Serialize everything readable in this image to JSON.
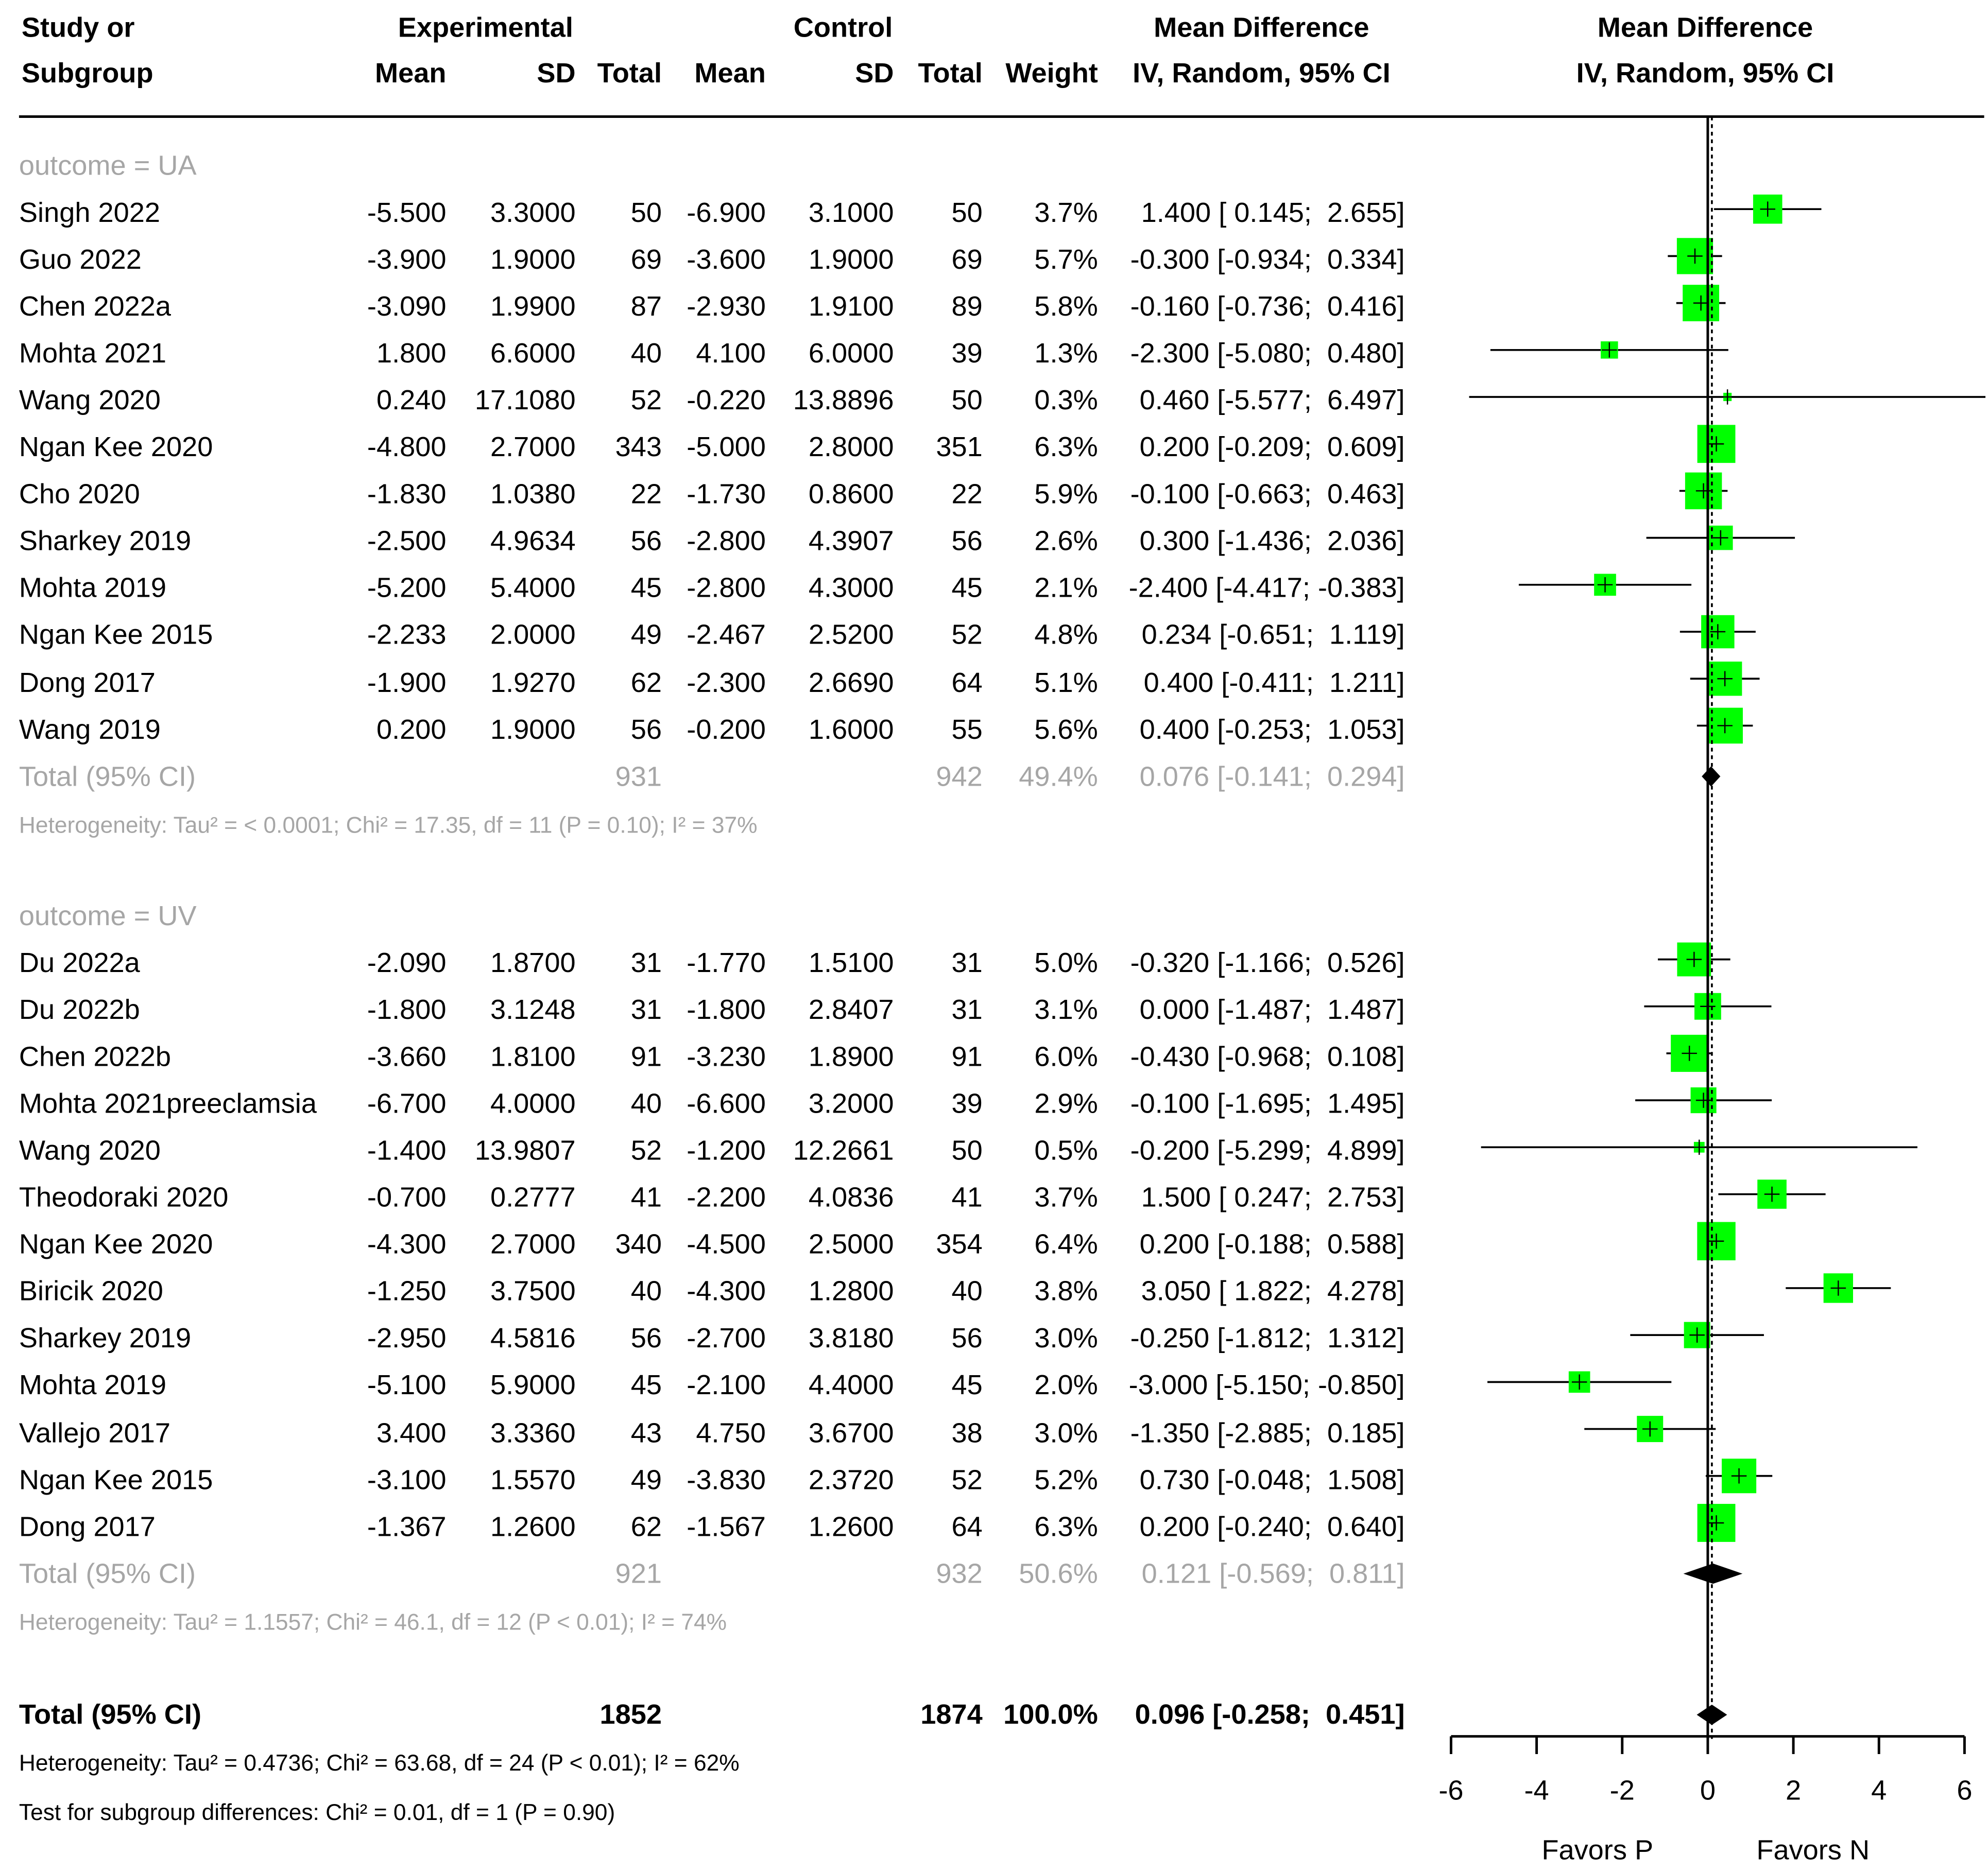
{
  "header": {
    "study_l1": "Study or",
    "study_l2": "Subgroup",
    "experimental": "Experimental",
    "control": "Control",
    "mean": "Mean",
    "sd": "SD",
    "total": "Total",
    "weight": "Weight",
    "md_title": "Mean Difference",
    "md_method": "IV, Random, 95% CI",
    "plot_title": "Mean Difference",
    "plot_method": "IV, Random, 95% CI"
  },
  "colors": {
    "box": "#00ff00",
    "subtotal_text": "#a6a6a6",
    "line": "#000000"
  },
  "chart_data": {
    "type": "forest",
    "xlim": [
      -6,
      6
    ],
    "xticks": [
      "-6",
      "-4",
      "-2",
      "0",
      "2",
      "4",
      "6"
    ],
    "favors_left": "Favors P",
    "favors_right": "Favors N",
    "groups": [
      {
        "label": "outcome = UA",
        "studies": [
          {
            "name": "Singh 2022",
            "em": "-5.500",
            "esd": "3.3000",
            "en": "50",
            "cm": "-6.900",
            "csd": "3.1000",
            "cn": "50",
            "w": "3.7%",
            "ci": "1.400 [ 0.145;  2.655]",
            "md": 1.4,
            "lo": 0.145,
            "hi": 2.655,
            "wt": 3.7
          },
          {
            "name": "Guo 2022",
            "em": "-3.900",
            "esd": "1.9000",
            "en": "69",
            "cm": "-3.600",
            "csd": "1.9000",
            "cn": "69",
            "w": "5.7%",
            "ci": "-0.300 [-0.934;  0.334]",
            "md": -0.3,
            "lo": -0.934,
            "hi": 0.334,
            "wt": 5.7
          },
          {
            "name": "Chen 2022a",
            "em": "-3.090",
            "esd": "1.9900",
            "en": "87",
            "cm": "-2.930",
            "csd": "1.9100",
            "cn": "89",
            "w": "5.8%",
            "ci": "-0.160 [-0.736;  0.416]",
            "md": -0.16,
            "lo": -0.736,
            "hi": 0.416,
            "wt": 5.8
          },
          {
            "name": "Mohta 2021",
            "em": "1.800",
            "esd": "6.6000",
            "en": "40",
            "cm": "4.100",
            "csd": "6.0000",
            "cn": "39",
            "w": "1.3%",
            "ci": "-2.300 [-5.080;  0.480]",
            "md": -2.3,
            "lo": -5.08,
            "hi": 0.48,
            "wt": 1.3
          },
          {
            "name": "Wang 2020",
            "em": "0.240",
            "esd": "17.1080",
            "en": "52",
            "cm": "-0.220",
            "csd": "13.8896",
            "cn": "50",
            "w": "0.3%",
            "ci": "0.460 [-5.577;  6.497]",
            "md": 0.46,
            "lo": -5.577,
            "hi": 6.497,
            "wt": 0.3
          },
          {
            "name": "Ngan Kee 2020",
            "em": "-4.800",
            "esd": "2.7000",
            "en": "343",
            "cm": "-5.000",
            "csd": "2.8000",
            "cn": "351",
            "w": "6.3%",
            "ci": "0.200 [-0.209;  0.609]",
            "md": 0.2,
            "lo": -0.209,
            "hi": 0.609,
            "wt": 6.3
          },
          {
            "name": "Cho 2020",
            "em": "-1.830",
            "esd": "1.0380",
            "en": "22",
            "cm": "-1.730",
            "csd": "0.8600",
            "cn": "22",
            "w": "5.9%",
            "ci": "-0.100 [-0.663;  0.463]",
            "md": -0.1,
            "lo": -0.663,
            "hi": 0.463,
            "wt": 5.9
          },
          {
            "name": "Sharkey 2019",
            "em": "-2.500",
            "esd": "4.9634",
            "en": "56",
            "cm": "-2.800",
            "csd": "4.3907",
            "cn": "56",
            "w": "2.6%",
            "ci": "0.300 [-1.436;  2.036]",
            "md": 0.3,
            "lo": -1.436,
            "hi": 2.036,
            "wt": 2.6
          },
          {
            "name": "Mohta 2019",
            "em": "-5.200",
            "esd": "5.4000",
            "en": "45",
            "cm": "-2.800",
            "csd": "4.3000",
            "cn": "45",
            "w": "2.1%",
            "ci": "-2.400 [-4.417; -0.383]",
            "md": -2.4,
            "lo": -4.417,
            "hi": -0.383,
            "wt": 2.1
          },
          {
            "name": "Ngan Kee 2015",
            "em": "-2.233",
            "esd": "2.0000",
            "en": "49",
            "cm": "-2.467",
            "csd": "2.5200",
            "cn": "52",
            "w": "4.8%",
            "ci": "0.234 [-0.651;  1.119]",
            "md": 0.234,
            "lo": -0.651,
            "hi": 1.119,
            "wt": 4.8
          },
          {
            "name": "Dong 2017",
            "em": "-1.900",
            "esd": "1.9270",
            "en": "62",
            "cm": "-2.300",
            "csd": "2.6690",
            "cn": "64",
            "w": "5.1%",
            "ci": "0.400 [-0.411;  1.211]",
            "md": 0.4,
            "lo": -0.411,
            "hi": 1.211,
            "wt": 5.1
          },
          {
            "name": "Wang 2019",
            "em": "0.200",
            "esd": "1.9000",
            "en": "56",
            "cm": "-0.200",
            "csd": "1.6000",
            "cn": "55",
            "w": "5.6%",
            "ci": "0.400 [-0.253;  1.053]",
            "md": 0.4,
            "lo": -0.253,
            "hi": 1.053,
            "wt": 5.6
          }
        ],
        "total": {
          "label": "Total (95% CI)",
          "en": "931",
          "cn": "942",
          "w": "49.4%",
          "ci": "0.076 [-0.141;  0.294]",
          "md": 0.076,
          "lo": -0.141,
          "hi": 0.294
        },
        "heterogeneity": "Heterogeneity: Tau² = < 0.0001; Chi² = 17.35, df = 11 (P = 0.10); I² = 37%"
      },
      {
        "label": "outcome = UV",
        "studies": [
          {
            "name": "Du 2022a",
            "em": "-2.090",
            "esd": "1.8700",
            "en": "31",
            "cm": "-1.770",
            "csd": "1.5100",
            "cn": "31",
            "w": "5.0%",
            "ci": "-0.320 [-1.166;  0.526]",
            "md": -0.32,
            "lo": -1.166,
            "hi": 0.526,
            "wt": 5.0
          },
          {
            "name": "Du 2022b",
            "em": "-1.800",
            "esd": "3.1248",
            "en": "31",
            "cm": "-1.800",
            "csd": "2.8407",
            "cn": "31",
            "w": "3.1%",
            "ci": "0.000 [-1.487;  1.487]",
            "md": 0.0,
            "lo": -1.487,
            "hi": 1.487,
            "wt": 3.1
          },
          {
            "name": "Chen 2022b",
            "em": "-3.660",
            "esd": "1.8100",
            "en": "91",
            "cm": "-3.230",
            "csd": "1.8900",
            "cn": "91",
            "w": "6.0%",
            "ci": "-0.430 [-0.968;  0.108]",
            "md": -0.43,
            "lo": -0.968,
            "hi": 0.108,
            "wt": 6.0
          },
          {
            "name": "Mohta 2021preeclamsia",
            "em": "-6.700",
            "esd": "4.0000",
            "en": "40",
            "cm": "-6.600",
            "csd": "3.2000",
            "cn": "39",
            "w": "2.9%",
            "ci": "-0.100 [-1.695;  1.495]",
            "md": -0.1,
            "lo": -1.695,
            "hi": 1.495,
            "wt": 2.9
          },
          {
            "name": "Wang 2020",
            "em": "-1.400",
            "esd": "13.9807",
            "en": "52",
            "cm": "-1.200",
            "csd": "12.2661",
            "cn": "50",
            "w": "0.5%",
            "ci": "-0.200 [-5.299;  4.899]",
            "md": -0.2,
            "lo": -5.299,
            "hi": 4.899,
            "wt": 0.5
          },
          {
            "name": "Theodoraki 2020",
            "em": "-0.700",
            "esd": "0.2777",
            "en": "41",
            "cm": "-2.200",
            "csd": "4.0836",
            "cn": "41",
            "w": "3.7%",
            "ci": "1.500 [ 0.247;  2.753]",
            "md": 1.5,
            "lo": 0.247,
            "hi": 2.753,
            "wt": 3.7
          },
          {
            "name": "Ngan Kee 2020",
            "em": "-4.300",
            "esd": "2.7000",
            "en": "340",
            "cm": "-4.500",
            "csd": "2.5000",
            "cn": "354",
            "w": "6.4%",
            "ci": "0.200 [-0.188;  0.588]",
            "md": 0.2,
            "lo": -0.188,
            "hi": 0.588,
            "wt": 6.4
          },
          {
            "name": "Biricik 2020",
            "em": "-1.250",
            "esd": "3.7500",
            "en": "40",
            "cm": "-4.300",
            "csd": "1.2800",
            "cn": "40",
            "w": "3.8%",
            "ci": "3.050 [ 1.822;  4.278]",
            "md": 3.05,
            "lo": 1.822,
            "hi": 4.278,
            "wt": 3.8
          },
          {
            "name": "Sharkey 2019",
            "em": "-2.950",
            "esd": "4.5816",
            "en": "56",
            "cm": "-2.700",
            "csd": "3.8180",
            "cn": "56",
            "w": "3.0%",
            "ci": "-0.250 [-1.812;  1.312]",
            "md": -0.25,
            "lo": -1.812,
            "hi": 1.312,
            "wt": 3.0
          },
          {
            "name": "Mohta 2019",
            "em": "-5.100",
            "esd": "5.9000",
            "en": "45",
            "cm": "-2.100",
            "csd": "4.4000",
            "cn": "45",
            "w": "2.0%",
            "ci": "-3.000 [-5.150; -0.850]",
            "md": -3.0,
            "lo": -5.15,
            "hi": -0.85,
            "wt": 2.0
          },
          {
            "name": "Vallejo 2017",
            "em": "3.400",
            "esd": "3.3360",
            "en": "43",
            "cm": "4.750",
            "csd": "3.6700",
            "cn": "38",
            "w": "3.0%",
            "ci": "-1.350 [-2.885;  0.185]",
            "md": -1.35,
            "lo": -2.885,
            "hi": 0.185,
            "wt": 3.0
          },
          {
            "name": "Ngan Kee 2015",
            "em": "-3.100",
            "esd": "1.5570",
            "en": "49",
            "cm": "-3.830",
            "csd": "2.3720",
            "cn": "52",
            "w": "5.2%",
            "ci": "0.730 [-0.048;  1.508]",
            "md": 0.73,
            "lo": -0.048,
            "hi": 1.508,
            "wt": 5.2
          },
          {
            "name": "Dong 2017",
            "em": "-1.367",
            "esd": "1.2600",
            "en": "62",
            "cm": "-1.567",
            "csd": "1.2600",
            "cn": "64",
            "w": "6.3%",
            "ci": "0.200 [-0.240;  0.640]",
            "md": 0.2,
            "lo": -0.24,
            "hi": 0.64,
            "wt": 6.3
          }
        ],
        "total": {
          "label": "Total (95% CI)",
          "en": "921",
          "cn": "932",
          "w": "50.6%",
          "ci": "0.121 [-0.569;  0.811]",
          "md": 0.121,
          "lo": -0.569,
          "hi": 0.811
        },
        "heterogeneity": "Heterogeneity: Tau² = 1.1557; Chi² = 46.1, df = 12 (P < 0.01); I² = 74%"
      }
    ],
    "overall": {
      "label": "Total (95% CI)",
      "en": "1852",
      "cn": "1874",
      "w": "100.0%",
      "ci": "0.096 [-0.258;  0.451]",
      "md": 0.096,
      "lo": -0.258,
      "hi": 0.451
    },
    "overall_heterogeneity": "Heterogeneity: Tau² = 0.4736; Chi² = 63.68, df = 24 (P < 0.01); I² = 62%",
    "subgroup_test": "Test for subgroup differences: Chi² = 0.01, df = 1 (P = 0.90)"
  }
}
